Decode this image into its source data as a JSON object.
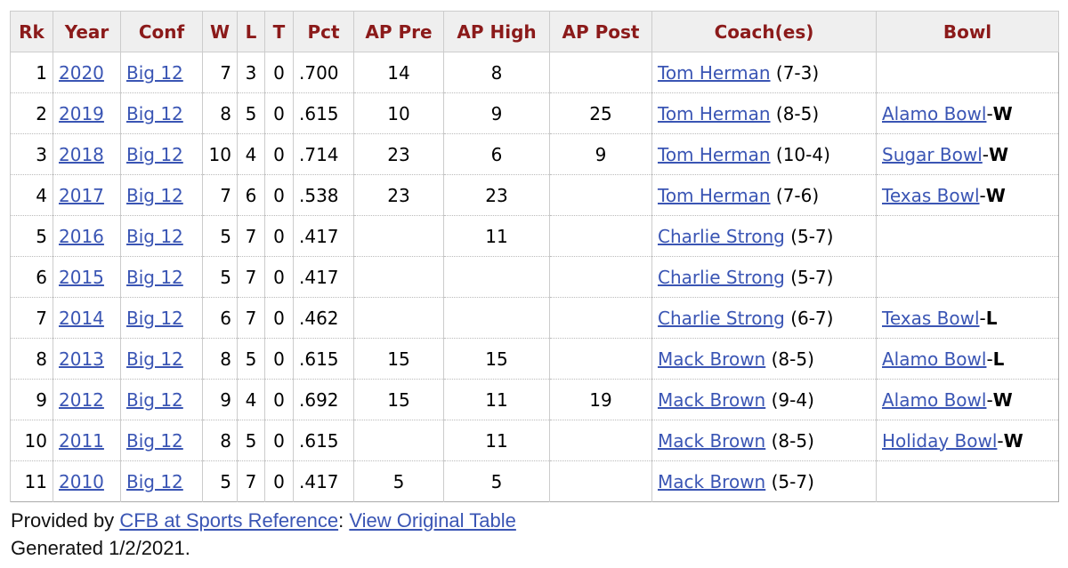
{
  "table": {
    "header": [
      "Rk",
      "Year",
      "Conf",
      "W",
      "L",
      "T",
      "Pct",
      "AP Pre",
      "AP High",
      "AP Post",
      "Coach(es)",
      "Bowl"
    ],
    "rows": [
      {
        "rk": 1,
        "year": "2020",
        "conf": "Big 12",
        "w": 7,
        "l": 3,
        "t": 0,
        "pct": ".700",
        "ap_pre": 14,
        "ap_high": 8,
        "ap_post": null,
        "coach": "Tom Herman",
        "coach_record": "(7-3)",
        "bowl": null,
        "bowl_result": null
      },
      {
        "rk": 2,
        "year": "2019",
        "conf": "Big 12",
        "w": 8,
        "l": 5,
        "t": 0,
        "pct": ".615",
        "ap_pre": 10,
        "ap_high": 9,
        "ap_post": 25,
        "coach": "Tom Herman",
        "coach_record": "(8-5)",
        "bowl": "Alamo Bowl",
        "bowl_result": "W"
      },
      {
        "rk": 3,
        "year": "2018",
        "conf": "Big 12",
        "w": 10,
        "l": 4,
        "t": 0,
        "pct": ".714",
        "ap_pre": 23,
        "ap_high": 6,
        "ap_post": 9,
        "coach": "Tom Herman",
        "coach_record": "(10-4)",
        "bowl": "Sugar Bowl",
        "bowl_result": "W"
      },
      {
        "rk": 4,
        "year": "2017",
        "conf": "Big 12",
        "w": 7,
        "l": 6,
        "t": 0,
        "pct": ".538",
        "ap_pre": 23,
        "ap_high": 23,
        "ap_post": null,
        "coach": "Tom Herman",
        "coach_record": "(7-6)",
        "bowl": "Texas Bowl",
        "bowl_result": "W"
      },
      {
        "rk": 5,
        "year": "2016",
        "conf": "Big 12",
        "w": 5,
        "l": 7,
        "t": 0,
        "pct": ".417",
        "ap_pre": null,
        "ap_high": 11,
        "ap_post": null,
        "coach": "Charlie Strong",
        "coach_record": "(5-7)",
        "bowl": null,
        "bowl_result": null
      },
      {
        "rk": 6,
        "year": "2015",
        "conf": "Big 12",
        "w": 5,
        "l": 7,
        "t": 0,
        "pct": ".417",
        "ap_pre": null,
        "ap_high": null,
        "ap_post": null,
        "coach": "Charlie Strong",
        "coach_record": "(5-7)",
        "bowl": null,
        "bowl_result": null
      },
      {
        "rk": 7,
        "year": "2014",
        "conf": "Big 12",
        "w": 6,
        "l": 7,
        "t": 0,
        "pct": ".462",
        "ap_pre": null,
        "ap_high": null,
        "ap_post": null,
        "coach": "Charlie Strong",
        "coach_record": "(6-7)",
        "bowl": "Texas Bowl",
        "bowl_result": "L"
      },
      {
        "rk": 8,
        "year": "2013",
        "conf": "Big 12",
        "w": 8,
        "l": 5,
        "t": 0,
        "pct": ".615",
        "ap_pre": 15,
        "ap_high": 15,
        "ap_post": null,
        "coach": "Mack Brown",
        "coach_record": "(8-5)",
        "bowl": "Alamo Bowl",
        "bowl_result": "L"
      },
      {
        "rk": 9,
        "year": "2012",
        "conf": "Big 12",
        "w": 9,
        "l": 4,
        "t": 0,
        "pct": ".692",
        "ap_pre": 15,
        "ap_high": 11,
        "ap_post": 19,
        "coach": "Mack Brown",
        "coach_record": "(9-4)",
        "bowl": "Alamo Bowl",
        "bowl_result": "W"
      },
      {
        "rk": 10,
        "year": "2011",
        "conf": "Big 12",
        "w": 8,
        "l": 5,
        "t": 0,
        "pct": ".615",
        "ap_pre": null,
        "ap_high": 11,
        "ap_post": null,
        "coach": "Mack Brown",
        "coach_record": "(8-5)",
        "bowl": "Holiday Bowl",
        "bowl_result": "W"
      },
      {
        "rk": 11,
        "year": "2010",
        "conf": "Big 12",
        "w": 5,
        "l": 7,
        "t": 0,
        "pct": ".417",
        "ap_pre": 5,
        "ap_high": 5,
        "ap_post": null,
        "coach": "Mack Brown",
        "coach_record": "(5-7)",
        "bowl": null,
        "bowl_result": null
      }
    ]
  },
  "footer": {
    "prefix": "Provided by",
    "source": "CFB at Sports Reference",
    "separator": ":",
    "link": "View Original Table",
    "generated": "Generated 1/2/2021."
  }
}
